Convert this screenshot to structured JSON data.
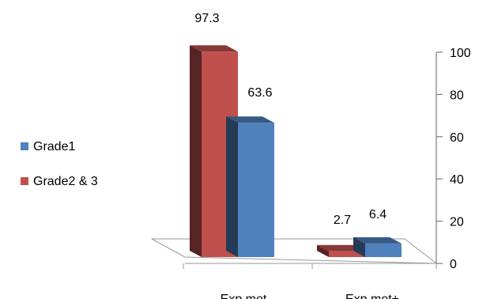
{
  "chart_data": {
    "type": "bar",
    "categories": [
      "Exp.met",
      "Exp.met+"
    ],
    "series": [
      {
        "name": "Grade2 & 3",
        "values": [
          97.3,
          2.7
        ],
        "color": "#C0504D"
      },
      {
        "name": "Grade1",
        "values": [
          63.6,
          6.4
        ],
        "color": "#4F81BD"
      }
    ],
    "ylim": [
      0,
      100
    ],
    "yticks": [
      0,
      20,
      40,
      60,
      80,
      100
    ],
    "data_labels": [
      "97.3",
      "63.6",
      "2.7",
      "6.4"
    ],
    "legend_position": "left",
    "legend": [
      {
        "name": "Grade1",
        "color": "#4F81BD"
      },
      {
        "name": "Grade2 & 3",
        "color": "#C0504D"
      }
    ],
    "grid": false,
    "style": "3d-clustered-column",
    "yaxis_side": "right"
  }
}
